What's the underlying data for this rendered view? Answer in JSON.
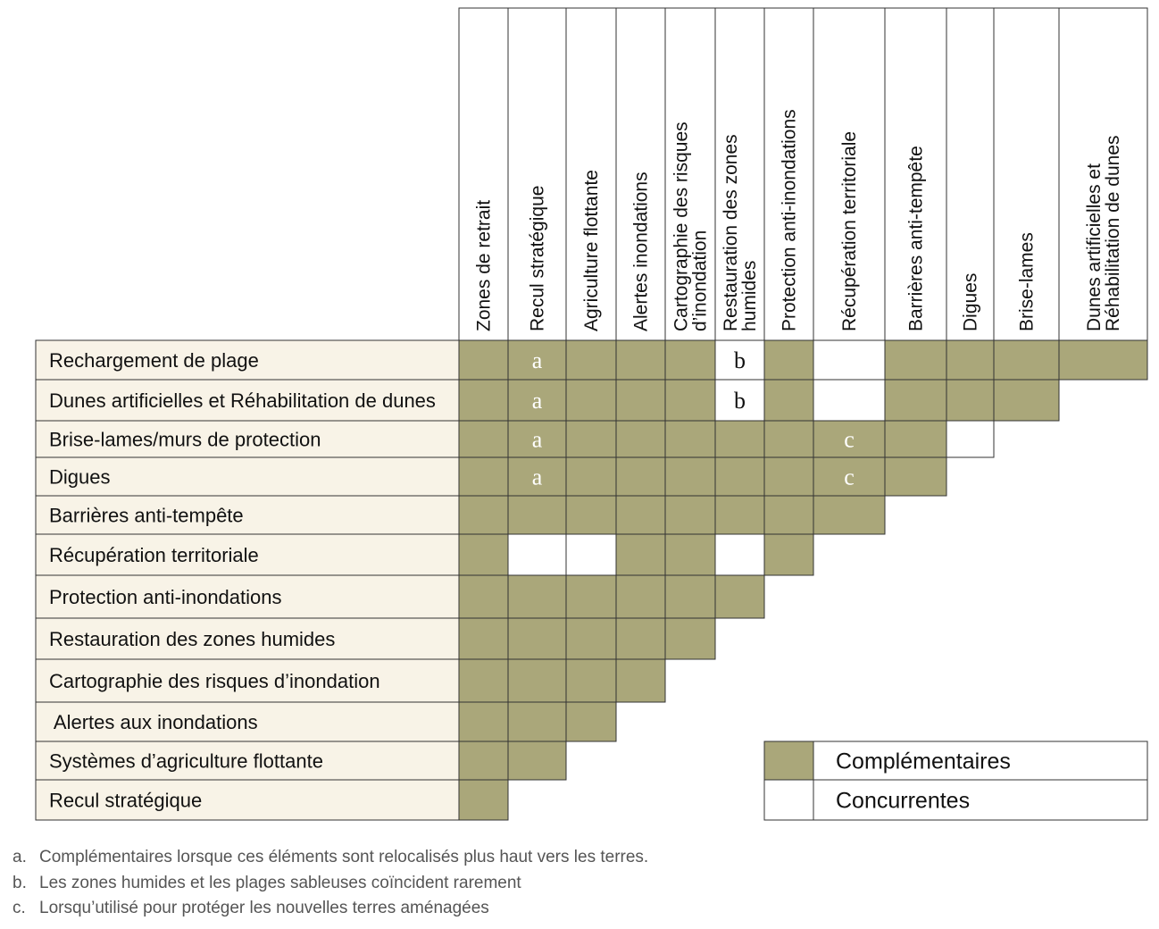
{
  "colors": {
    "complementary": "#aaa77a",
    "competing": "#ffffff",
    "label_bg": "#f8f3e7",
    "mark_on_fill": "#ffffff",
    "mark_on_white": "#111111"
  },
  "columns": [
    {
      "id": "zones_retrait",
      "lines": [
        "Zones de retrait"
      ]
    },
    {
      "id": "recul",
      "lines": [
        "Recul stratégique"
      ]
    },
    {
      "id": "agri",
      "lines": [
        "Agriculture flottante"
      ]
    },
    {
      "id": "alertes",
      "lines": [
        "Alertes inondations"
      ]
    },
    {
      "id": "carto",
      "lines": [
        "Cartographie des risques",
        "d’inondation"
      ]
    },
    {
      "id": "zones_humides",
      "lines": [
        "Restauration des zones",
        "humides"
      ]
    },
    {
      "id": "protection",
      "lines": [
        "Protection anti-inondations"
      ]
    },
    {
      "id": "recuperation",
      "lines": [
        "Récupération territoriale"
      ]
    },
    {
      "id": "barrieres",
      "lines": [
        "Barrières anti-tempête"
      ]
    },
    {
      "id": "digues",
      "lines": [
        "Digues"
      ]
    },
    {
      "id": "brise",
      "lines": [
        "Brise-lames"
      ]
    },
    {
      "id": "dunes",
      "lines": [
        "Dunes artificielles et",
        "Réhabilitation de dunes"
      ]
    }
  ],
  "rows": [
    {
      "label": "Rechargement de plage",
      "cells": [
        "C",
        "Ca",
        "C",
        "C",
        "C",
        "Wb",
        "C",
        "W",
        "C",
        "C",
        "C",
        "C"
      ]
    },
    {
      "label": "Dunes artificielles et Réhabilitation de dunes",
      "cells": [
        "C",
        "Ca",
        "C",
        "C",
        "C",
        "Wb",
        "C",
        "W",
        "C",
        "C",
        "C"
      ]
    },
    {
      "label": "Brise-lames/murs de protection",
      "cells": [
        "C",
        "Ca",
        "C",
        "C",
        "C",
        "C",
        "C",
        "Cc",
        "C",
        "W"
      ]
    },
    {
      "label": "Digues",
      "cells": [
        "C",
        "Ca",
        "C",
        "C",
        "C",
        "C",
        "C",
        "Cc",
        "C"
      ]
    },
    {
      "label": "Barrières anti-tempête",
      "cells": [
        "C",
        "C",
        "C",
        "C",
        "C",
        "C",
        "C",
        "C"
      ]
    },
    {
      "label": "Récupération territoriale",
      "cells": [
        "C",
        "W",
        "W",
        "C",
        "C",
        "W",
        "C"
      ]
    },
    {
      "label": "Protection anti-inondations",
      "cells": [
        "C",
        "C",
        "C",
        "C",
        "C",
        "C"
      ]
    },
    {
      "label": "Restauration des zones humides",
      "cells": [
        "C",
        "C",
        "C",
        "C",
        "C"
      ]
    },
    {
      "label": "Cartographie des risques d’inondation",
      "cells": [
        "C",
        "C",
        "C",
        "C"
      ]
    },
    {
      "label": " Alertes aux inondations",
      "cells": [
        "C",
        "C",
        "C"
      ]
    },
    {
      "label": "Systèmes d’agriculture flottante",
      "cells": [
        "C",
        "C"
      ]
    },
    {
      "label": "Recul stratégique",
      "cells": [
        "C"
      ]
    }
  ],
  "legend": [
    {
      "key": "complementary",
      "label": "Complémentaires"
    },
    {
      "key": "competing",
      "label": "Concurrentes"
    }
  ],
  "footnotes": [
    {
      "key": "a.",
      "text": "Complémentaires lorsque ces éléments sont relocalisés plus haut vers les terres."
    },
    {
      "key": "b.",
      "text": "Les zones humides et les plages sableuses coïncident rarement"
    },
    {
      "key": "c.",
      "text": "Lorsqu’utilisé pour protéger les nouvelles terres aménagées"
    }
  ]
}
